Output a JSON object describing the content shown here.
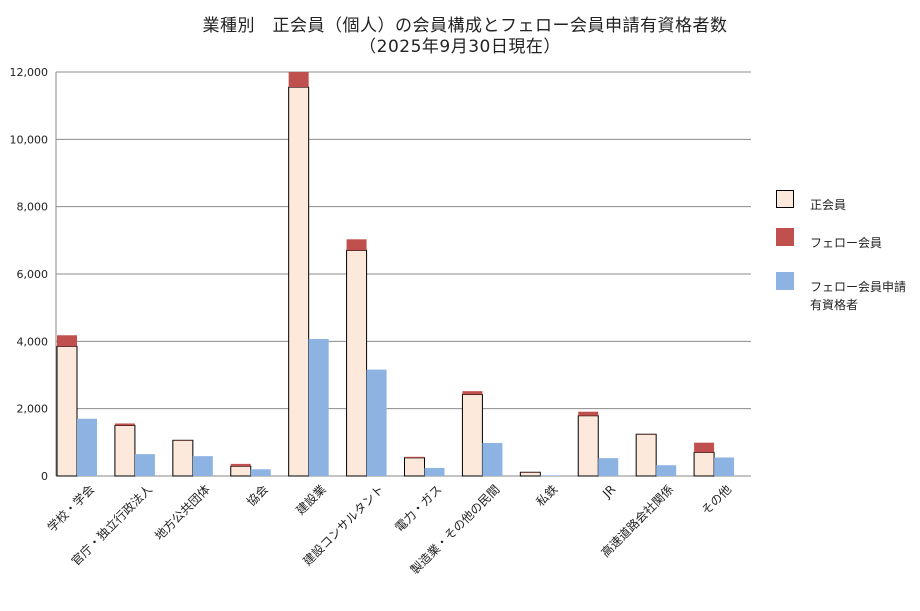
{
  "chart_data": {
    "type": "bar",
    "title_line1": "業種別　正会員（個人）の会員構成とフェロー会員申請有資格者数",
    "title_line2": "（2025年9月30日現在）",
    "categories": [
      "学校・学会",
      "官庁・独立行政法人",
      "地方公共団体",
      "協会",
      "建設業",
      "建設コンサルタント",
      "電力・ガス",
      "製造業・その他の民間",
      "私鉄",
      "JR",
      "高速道路会社関係",
      "その他"
    ],
    "series": [
      {
        "name": "正会員",
        "color": "#fde9dc",
        "stack": "member",
        "values": [
          3850,
          1500,
          1060,
          290,
          11550,
          6700,
          540,
          2420,
          110,
          1790,
          1240,
          700
        ]
      },
      {
        "name": "フェロー会員",
        "color": "#c0504d",
        "stack": "member",
        "values": [
          330,
          60,
          10,
          70,
          450,
          330,
          30,
          100,
          10,
          120,
          10,
          290
        ]
      },
      {
        "name": "フェロー会員申請\n有資格者",
        "color": "#8db3e2",
        "stack": "applicant",
        "values": [
          1700,
          650,
          590,
          200,
          4070,
          3160,
          240,
          980,
          20,
          530,
          320,
          550
        ]
      }
    ],
    "ylim": [
      0,
      12000
    ],
    "yticks": [
      "0",
      "2,000",
      "4,000",
      "6,000",
      "8,000",
      "10,000",
      "12,000"
    ],
    "grid": true,
    "legend_position": "right"
  }
}
